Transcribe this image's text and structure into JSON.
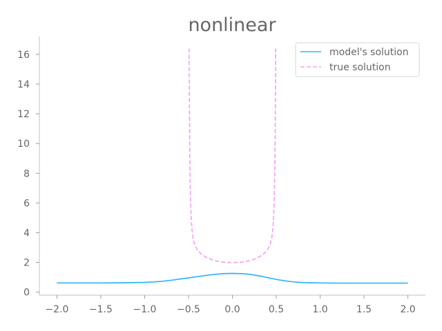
{
  "chart_data": {
    "type": "line",
    "title": "nonlinear",
    "xlabel": "",
    "ylabel": "",
    "xlim": [
      -2.2,
      2.2
    ],
    "ylim": [
      -0.2,
      17.2
    ],
    "xticks": [
      -2.0,
      -1.5,
      -1.0,
      -0.5,
      0.0,
      0.5,
      1.0,
      1.5,
      2.0
    ],
    "xtick_labels": [
      "−2.0",
      "−1.5",
      "−1.0",
      "−0.5",
      "0.0",
      "0.5",
      "1.0",
      "1.5",
      "2.0"
    ],
    "yticks": [
      0,
      2,
      4,
      6,
      8,
      10,
      12,
      14,
      16
    ],
    "ytick_labels": [
      "0",
      "2",
      "4",
      "6",
      "8",
      "10",
      "12",
      "14",
      "16"
    ],
    "grid": false,
    "legend_position": "top-right",
    "series": [
      {
        "name": "model's solution",
        "color": "#29b6f6",
        "style": "solid",
        "x": [
          -2.0,
          -1.75,
          -1.5,
          -1.25,
          -1.0,
          -0.9,
          -0.8,
          -0.7,
          -0.6,
          -0.5,
          -0.4,
          -0.3,
          -0.2,
          -0.1,
          0.0,
          0.1,
          0.2,
          0.3,
          0.4,
          0.5,
          0.6,
          0.7,
          0.8,
          0.9,
          1.0,
          1.25,
          1.5,
          1.75,
          2.0
        ],
        "y": [
          0.62,
          0.62,
          0.62,
          0.63,
          0.66,
          0.69,
          0.73,
          0.8,
          0.88,
          0.96,
          1.05,
          1.13,
          1.2,
          1.25,
          1.26,
          1.25,
          1.2,
          1.1,
          0.98,
          0.86,
          0.76,
          0.69,
          0.65,
          0.63,
          0.62,
          0.61,
          0.61,
          0.61,
          0.61
        ]
      },
      {
        "name": "true solution",
        "color": "#f4a3f0",
        "style": "dashed",
        "x": [
          -0.493,
          -0.49,
          -0.485,
          -0.48,
          -0.47,
          -0.46,
          -0.45,
          -0.43,
          -0.4,
          -0.35,
          -0.3,
          -0.25,
          -0.2,
          -0.15,
          -0.1,
          -0.05,
          0.0,
          0.05,
          0.1,
          0.15,
          0.2,
          0.25,
          0.3,
          0.35,
          0.4,
          0.43,
          0.45,
          0.46,
          0.47,
          0.48,
          0.485,
          0.49,
          0.493
        ],
        "y": [
          16.4,
          12.5,
          8.8,
          7.0,
          5.0,
          4.2,
          3.7,
          3.2,
          2.85,
          2.55,
          2.35,
          2.22,
          2.12,
          2.06,
          2.02,
          2.0,
          2.0,
          2.0,
          2.02,
          2.06,
          2.12,
          2.22,
          2.35,
          2.55,
          2.85,
          3.2,
          3.7,
          4.2,
          5.0,
          7.0,
          8.8,
          12.5,
          16.4
        ]
      }
    ]
  }
}
